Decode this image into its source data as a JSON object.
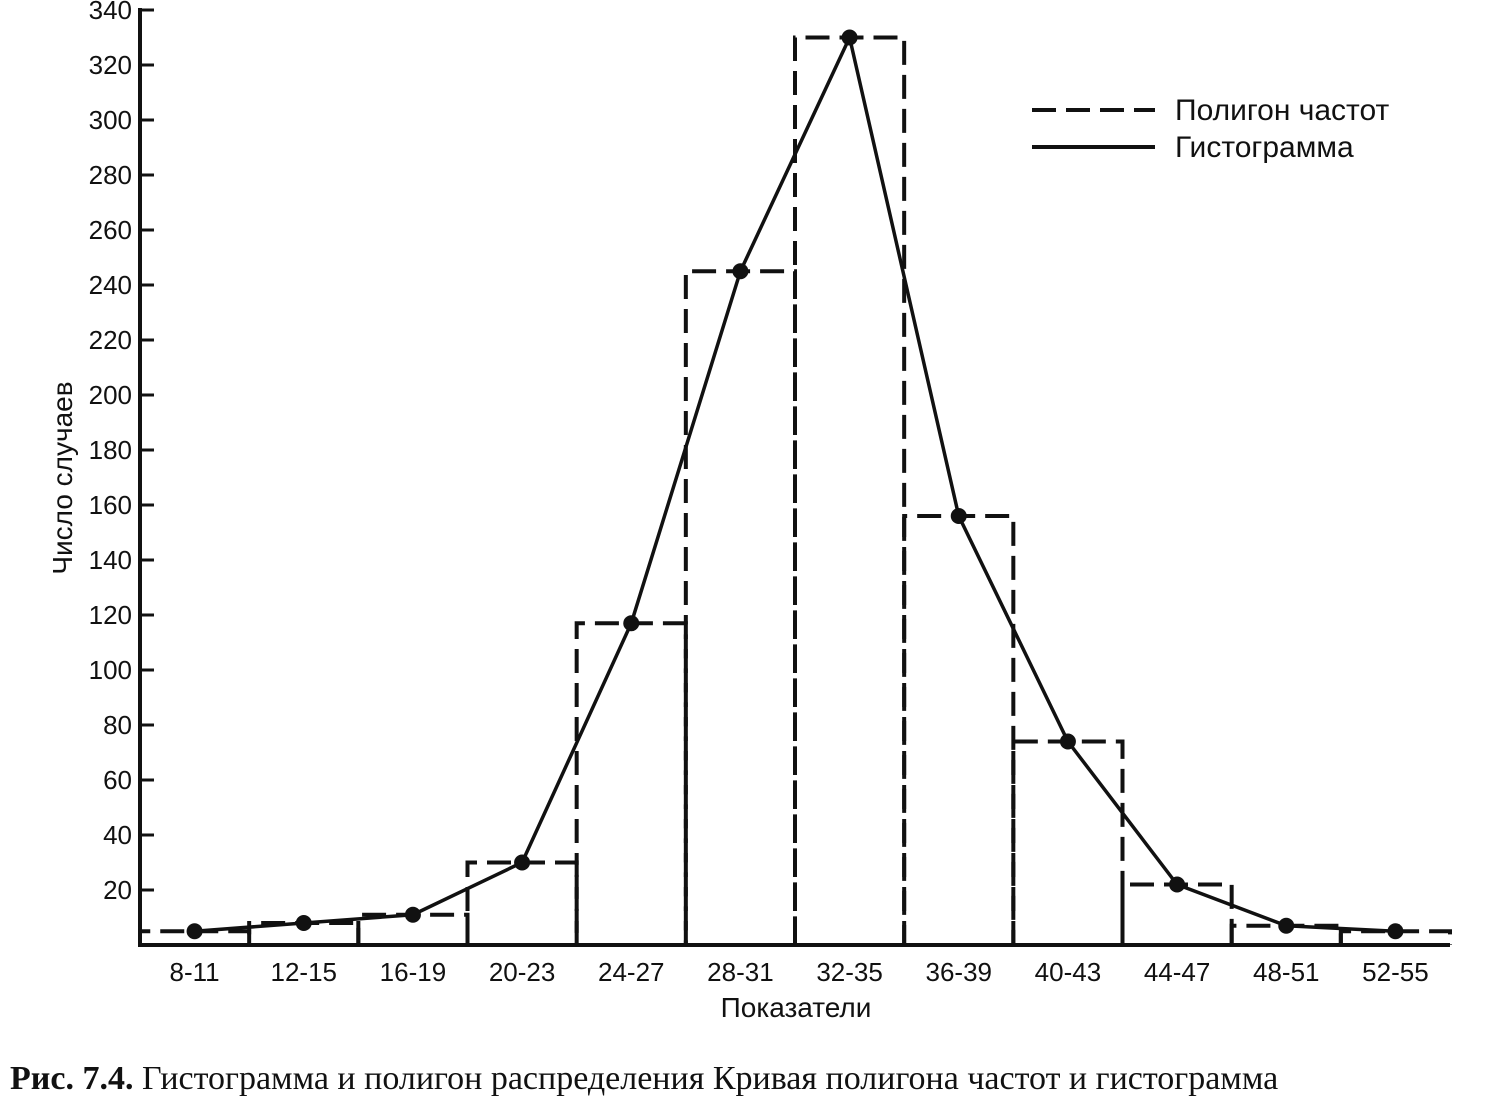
{
  "chart_data": {
    "type": "bar",
    "title": "",
    "xlabel": "Показатели",
    "ylabel": "Число случаев",
    "categories": [
      "8-11",
      "12-15",
      "16-19",
      "20-23",
      "24-27",
      "28-31",
      "32-35",
      "36-39",
      "40-43",
      "44-47",
      "48-51",
      "52-55"
    ],
    "values": [
      5,
      8,
      11,
      30,
      117,
      245,
      330,
      156,
      74,
      22,
      7,
      5
    ],
    "ylim": [
      0,
      340
    ],
    "yticks": [
      20,
      40,
      60,
      80,
      100,
      120,
      140,
      160,
      180,
      200,
      220,
      240,
      260,
      280,
      300,
      320,
      340
    ],
    "grid": false,
    "legend_position": "top-right",
    "series": [
      {
        "name": "Полигон частот",
        "style": "dashed step"
      },
      {
        "name": "Гистограмма",
        "style": "solid line with dots"
      }
    ]
  },
  "caption": {
    "label": "Рис. 7.4.",
    "text": " Гистограмма и полигон распределения  Кривая полигона частот и гистограмма"
  },
  "colors": {
    "ink": "#111111",
    "background": "#ffffff"
  }
}
